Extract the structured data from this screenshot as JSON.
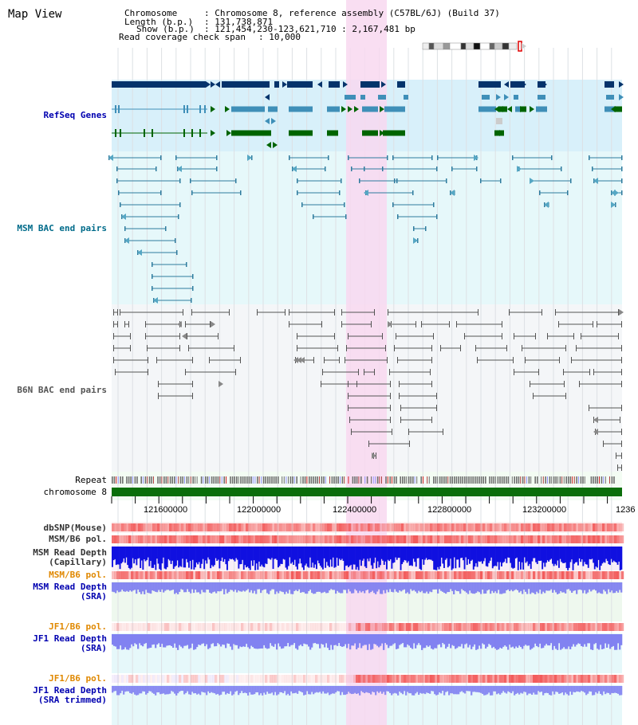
{
  "title": "Map View",
  "info": {
    "chromosome_key": "Chromosome",
    "chromosome_val": ": Chromosome 8, reference assembly (C57BL/6J) (Build 37)",
    "length_key": "Length (b.p.)",
    "length_val": ": 131,738,871",
    "show_key": "Show (b.p.)",
    "show_val": ": 121,454,230-123,621,710 : 2,167,481 bp",
    "coverage_key": "Read coverage check span",
    "coverage_val": ": 10,000"
  },
  "tracks": {
    "refseq": "RefSeq Genes",
    "msm_bac": "MSM BAC end pairs",
    "b6n_bac": "B6N BAC end pairs",
    "repeat": "Repeat",
    "chromosome": "chromosome 8",
    "dbsnp": "dbSNP(Mouse)",
    "msm_b6_pol_1": "MSM/B6 pol.",
    "msm_depth_cap_1": "MSM Read Depth",
    "msm_depth_cap_2": "(Capillary)",
    "msm_b6_pol_2": "MSM/B6 pol.",
    "msm_depth_sra_1": "MSM Read Depth",
    "msm_depth_sra_2": "(SRA)",
    "jf1_b6_pol_1": "JF1/B6 pol.",
    "jf1_depth_sra_1": "JF1 Read Depth",
    "jf1_depth_sra_2": "(SRA)",
    "jf1_b6_pol_2": "JF1/B6 pol.",
    "jf1_depth_trim_1": "JF1 Read Depth",
    "jf1_depth_trim_2": "(SRA trimmed)"
  },
  "axis": {
    "ticks": [
      "121600000",
      "122000000",
      "122400000",
      "122800000",
      "123200000",
      "1236"
    ]
  },
  "colors": {
    "refseq_bg": "#d8f0fa",
    "msm_bg": "#e6f8fa",
    "b6n_bg": "#f4f6f8",
    "highlight": "#f8d8f0",
    "refseq_dark": "#05336b",
    "refseq_mid": "#3f8fb8",
    "refseq_green": "#006400",
    "msm_line": "#2e7b9e",
    "b6n_line": "#555555",
    "chrom_bar": "#0a6e0a",
    "snp": "#f25a5a",
    "depth_blue": "#1010e0",
    "depth_soft": "#7c7cf0",
    "orange_label": "#e08800",
    "blue_label": "#0000b0"
  }
}
